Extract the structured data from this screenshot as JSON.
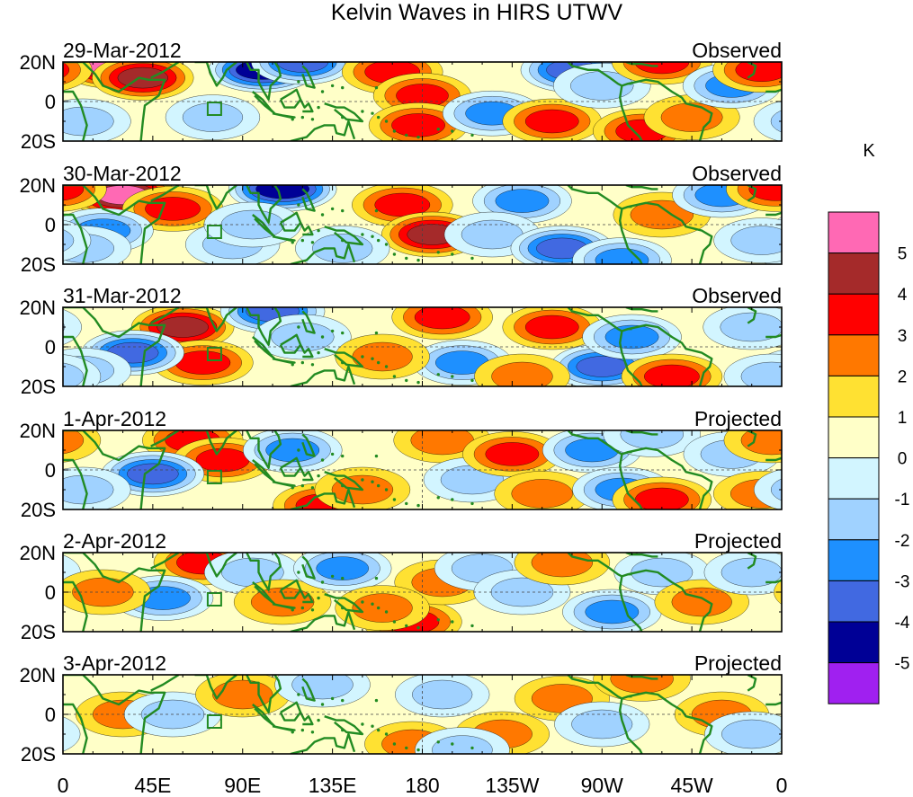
{
  "chart_data": {
    "type": "heatmap",
    "title": "Kelvin Waves in HIRS UTWV",
    "colorbar": {
      "unit": "K",
      "colors": [
        "#a020f0",
        "#000096",
        "#4169e1",
        "#1e90ff",
        "#a0d2ff",
        "#d2f5ff",
        "#ffffc8",
        "#ffe132",
        "#ff7800",
        "#ff0000",
        "#a52a2a",
        "#ff69b4"
      ],
      "tick_labels": [
        "-5",
        "-4",
        "-3",
        "-2",
        "-1",
        "0",
        "1",
        "2",
        "3",
        "4",
        "5"
      ]
    },
    "x_axis": {
      "ticks": [
        "0",
        "45E",
        "90E",
        "135E",
        "180",
        "135W",
        "90W",
        "45W",
        "0"
      ],
      "range_deg_east": [
        0,
        360
      ]
    },
    "y_axis": {
      "ticks": [
        "20N",
        "0",
        "20S"
      ],
      "range_deg": [
        -20,
        20
      ]
    },
    "panels": [
      {
        "date": "29-Mar-2012",
        "kind": "Observed",
        "blobs": [
          [
            25,
            18,
            4.8
          ],
          [
            40,
            12,
            3.2
          ],
          [
            75,
            -8,
            -1.2
          ],
          [
            100,
            16,
            -5
          ],
          [
            120,
            20,
            -3.5
          ],
          [
            165,
            15,
            3
          ],
          [
            180,
            3,
            2.2
          ],
          [
            178,
            -12,
            2.5
          ],
          [
            215,
            -6,
            -2.5
          ],
          [
            255,
            16,
            -3.5
          ],
          [
            245,
            -10,
            2.5
          ],
          [
            270,
            8,
            -2
          ],
          [
            290,
            -15,
            2.2
          ],
          [
            300,
            20,
            2.8
          ],
          [
            315,
            -8,
            1.6
          ],
          [
            335,
            8,
            -2.2
          ],
          [
            350,
            16,
            2.2
          ],
          [
            10,
            -10,
            -1.6
          ]
        ]
      },
      {
        "date": "30-Mar-2012",
        "kind": "Observed",
        "blobs": [
          [
            30,
            15,
            4.5
          ],
          [
            55,
            8,
            3
          ],
          [
            20,
            -3,
            -3
          ],
          [
            85,
            -10,
            -1.2
          ],
          [
            110,
            18,
            -5
          ],
          [
            95,
            0,
            -2
          ],
          [
            170,
            10,
            3
          ],
          [
            185,
            -5,
            3.2
          ],
          [
            230,
            12,
            -2.5
          ],
          [
            215,
            -5,
            -1.6
          ],
          [
            250,
            -12,
            -3.5
          ],
          [
            280,
            -18,
            -2.5
          ],
          [
            300,
            5,
            2
          ],
          [
            330,
            15,
            -2.5
          ],
          [
            10,
            -12,
            -1.8
          ],
          [
            350,
            -8,
            -1.6
          ],
          [
            357,
            18,
            2.5
          ],
          [
            140,
            -12,
            -1.2
          ]
        ]
      },
      {
        "date": "31-Mar-2012",
        "kind": "Observed",
        "blobs": [
          [
            60,
            10,
            3.5
          ],
          [
            70,
            -8,
            3
          ],
          [
            35,
            -3,
            -3.5
          ],
          [
            105,
            18,
            -4
          ],
          [
            120,
            5,
            -2
          ],
          [
            190,
            15,
            3
          ],
          [
            200,
            -8,
            -2.5
          ],
          [
            245,
            10,
            2.5
          ],
          [
            270,
            -10,
            -3.5
          ],
          [
            285,
            5,
            -2.5
          ],
          [
            305,
            -15,
            3
          ],
          [
            345,
            10,
            -2
          ],
          [
            10,
            -12,
            -1.8
          ],
          [
            160,
            -5,
            1.2
          ],
          [
            230,
            -15,
            1.5
          ],
          [
            355,
            -15,
            -1.5
          ]
        ]
      },
      {
        "date": "1-Apr-2012",
        "kind": "Projected",
        "blobs": [
          [
            65,
            15,
            3
          ],
          [
            80,
            5,
            2.5
          ],
          [
            45,
            -2,
            -3.5
          ],
          [
            115,
            10,
            -2.5
          ],
          [
            130,
            -18,
            2.5
          ],
          [
            150,
            -10,
            1.5
          ],
          [
            190,
            15,
            2
          ],
          [
            205,
            -5,
            -2
          ],
          [
            225,
            8,
            2.5
          ],
          [
            240,
            -12,
            1.5
          ],
          [
            265,
            10,
            -2.5
          ],
          [
            280,
            -10,
            -2.5
          ],
          [
            295,
            18,
            -2
          ],
          [
            300,
            -15,
            2.5
          ],
          [
            335,
            8,
            -1.8
          ],
          [
            350,
            -12,
            1.8
          ],
          [
            10,
            -10,
            -1.5
          ],
          [
            355,
            15,
            1.5
          ]
        ]
      },
      {
        "date": "2-Apr-2012",
        "kind": "Projected",
        "blobs": [
          [
            70,
            15,
            2.2
          ],
          [
            50,
            -3,
            -3
          ],
          [
            95,
            10,
            -1.8
          ],
          [
            110,
            -5,
            2
          ],
          [
            140,
            12,
            -2.2
          ],
          [
            175,
            -15,
            2.5
          ],
          [
            190,
            5,
            1.5
          ],
          [
            210,
            12,
            -1.5
          ],
          [
            230,
            0,
            -1.8
          ],
          [
            250,
            15,
            1.5
          ],
          [
            275,
            -10,
            -2.5
          ],
          [
            300,
            10,
            -1.6
          ],
          [
            320,
            -5,
            1.2
          ],
          [
            345,
            10,
            -1.4
          ],
          [
            20,
            0,
            1.5
          ],
          [
            160,
            -8,
            1.2
          ]
        ]
      },
      {
        "date": "3-Apr-2012",
        "kind": "Projected",
        "blobs": [
          [
            30,
            0,
            1.2
          ],
          [
            55,
            0,
            -2
          ],
          [
            90,
            10,
            1.2
          ],
          [
            130,
            15,
            -1.5
          ],
          [
            175,
            -15,
            1.5
          ],
          [
            190,
            10,
            -1.2
          ],
          [
            220,
            -10,
            1.2
          ],
          [
            250,
            8,
            1.4
          ],
          [
            270,
            -5,
            -1.4
          ],
          [
            290,
            18,
            2
          ],
          [
            330,
            0,
            1.2
          ],
          [
            345,
            -10,
            -1.2
          ],
          [
            200,
            -18,
            -1.3
          ]
        ]
      }
    ]
  }
}
